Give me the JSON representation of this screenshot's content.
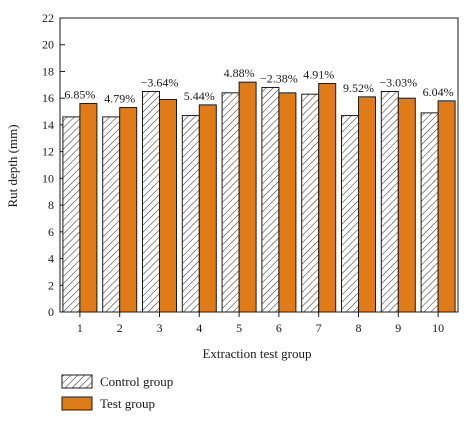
{
  "chart_data": {
    "type": "bar",
    "title": "",
    "xlabel": "Extraction test group",
    "ylabel": "Rut depth (mm)",
    "categories": [
      "1",
      "2",
      "3",
      "4",
      "5",
      "6",
      "7",
      "8",
      "9",
      "10"
    ],
    "ylim": [
      0,
      22
    ],
    "yticks": [
      0,
      2,
      4,
      6,
      8,
      10,
      12,
      14,
      16,
      18,
      20,
      22
    ],
    "grid": false,
    "legend_placement": "bottom-left",
    "series": [
      {
        "name": "Control group",
        "pattern": "hatched",
        "color": "#ffffff",
        "values": [
          14.6,
          14.6,
          16.5,
          14.7,
          16.4,
          16.8,
          16.3,
          14.7,
          16.5,
          14.9
        ]
      },
      {
        "name": "Test group",
        "pattern": "solid",
        "color": "#e07b1a",
        "values": [
          15.6,
          15.3,
          15.9,
          15.5,
          17.2,
          16.4,
          17.1,
          16.1,
          16.0,
          15.8
        ]
      }
    ],
    "annotations": [
      "6.85%",
      "4.79%",
      "−3.64%",
      "5.44%",
      "4.88%",
      "−2.38%",
      "4.91%",
      "9.52%",
      "−3.03%",
      "6.04%"
    ]
  }
}
